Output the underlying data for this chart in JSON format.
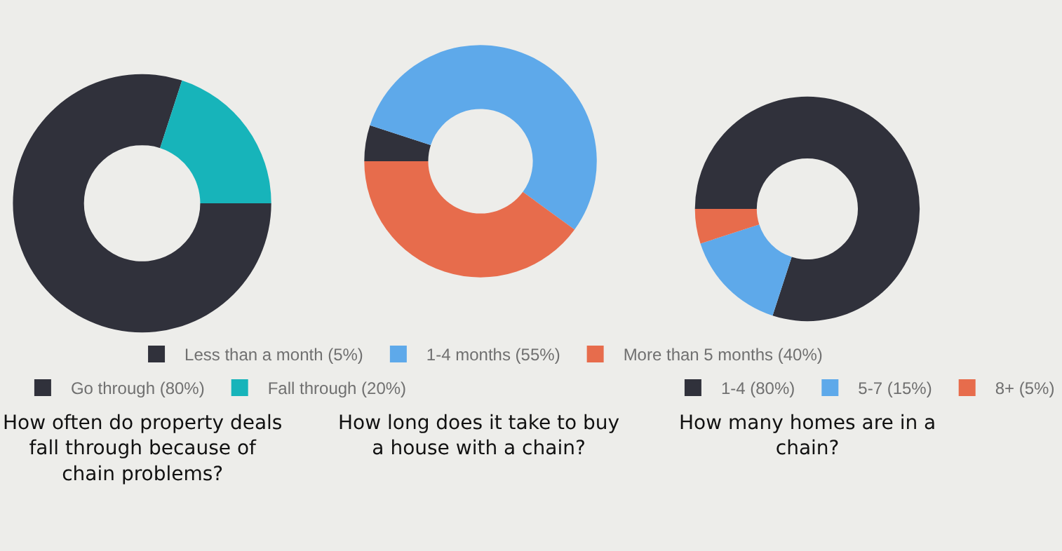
{
  "chart_data": [
    {
      "type": "donut",
      "title": "How often do property deals\nfall through because of\nchain problems?",
      "categories": [
        "Go through (80%)",
        "Fall through (20%)"
      ],
      "values": [
        80,
        20
      ],
      "colors": [
        "#30313b",
        "#17b4ba"
      ],
      "legend": "bottom"
    },
    {
      "type": "donut",
      "title": "How long does it take to buy\na house with a chain?",
      "categories": [
        "Less than a month (5%)",
        "1-4 months (55%)",
        "More than 5 months (40%)"
      ],
      "values": [
        5,
        55,
        40
      ],
      "colors": [
        "#30313b",
        "#5ea9ea",
        "#e76c4c"
      ],
      "legend": "bottom"
    },
    {
      "type": "donut",
      "title": "How many homes are in a\nchain?",
      "categories": [
        "1-4 (80%)",
        "5-7 (15%)",
        "8+ (5%)"
      ],
      "values": [
        80,
        15,
        5
      ],
      "colors": [
        "#30313b",
        "#5ea9ea",
        "#e76c4c"
      ],
      "legend": "bottom"
    }
  ]
}
